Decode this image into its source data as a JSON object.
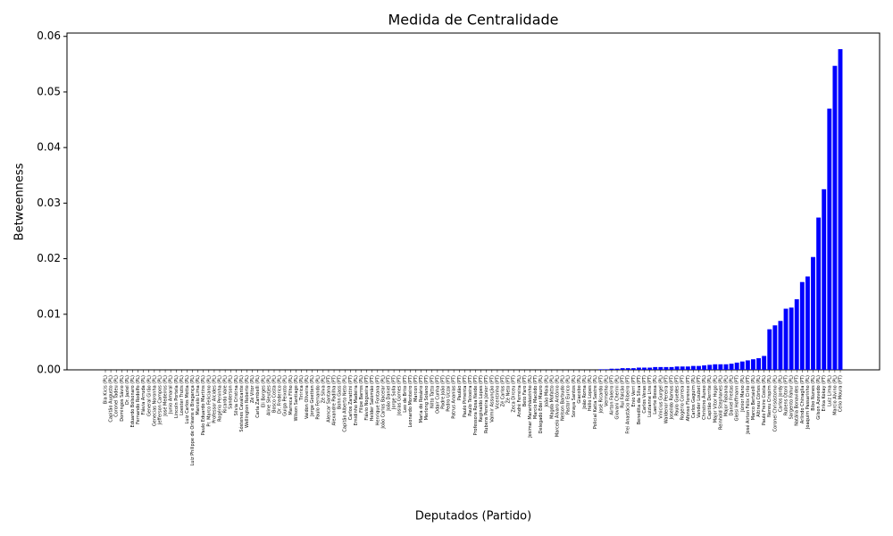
{
  "chart_data": {
    "type": "bar",
    "title": "Medida de Centralidade",
    "xlabel": "Deputados (Partido)",
    "ylabel": "Betweenness",
    "color": "#0000ff",
    "categories": [
      "Bia Kicis (PL)",
      "Capitão Augusto (PL)",
      "Coronel Tadeu (PL)",
      "Domingos Sávio (PL)",
      "Dr. Jaziel (PL)",
      "Eduardo Bolsonaro (PL)",
      "Fernando Rodolfo (PL)",
      "Flávia Arruda (PL)",
      "General Girão (PL)",
      "Genecias Noronha (PL)",
      "Jefferson Campos (PL)",
      "José Medeiros (PL)",
      "Junio Amaral (PL)",
      "Lincoln Portela (PL)",
      "Loester Trutis (PL)",
      "Luiz Carlos Motta (PL)",
      "Luiz Philippe de Orleans e Bragança (PL)",
      "Marcelo Lima (PL)",
      "Paulo Eduardo Martins (PL)",
      "Pr. Marco Feliciano (PL)",
      "Professor Alcides (PL)",
      "Rogério Peninha (PL)",
      "Ricardo Vale (PL)",
      "Sanderson (PL)",
      "Silvia Cristina (PL)",
      "Sóstenes Cavalcante (PL)",
      "Wellington Roberto (PL)",
      "Zé Vitor (PL)",
      "Carla Zambelli (PL)",
      "Eli Borges (PL)",
      "Aline Sleutjes (PL)",
      "Bosco Costa (PL)",
      "Dr. Frederico (PL)",
      "Guiga Peixoto (PL)",
      "Marreca Filho (PL)",
      "Wilson Santiago (PL)",
      "Tiririca (PL)",
      "Vaidon Oliveira (PL)",
      "Jorge Goetten (PL)",
      "Paulo Fernando (PL)",
      "Zé Silva (PL)",
      "Alencar Santana (PT)",
      "Alexandre Padilha (PT)",
      "Bohn Gass (PT)",
      "Capitão Alberto Neto (PL)",
      "Carlos Zarattini (PT)",
      "Emidinho Madeira (PL)",
      "Filipe Barros (PL)",
      "Flávio Nogueira (PT)",
      "Helder Salomão (PT)",
      "Henrique Fontana (PT)",
      "João Carlos Bacelar (PL)",
      "João Daniel (PT)",
      "Jorge Solla (PT)",
      "Josias Gomes (PT)",
      "Leo de Brito (PT)",
      "Leonardo Monteiro (PT)",
      "Marcon (PT)",
      "Maria do Rosário (PT)",
      "Merlong Solano (PT)",
      "Nilto Tatto (PT)",
      "Odair Cunha (PT)",
      "Padre João (PT)",
      "Pedro Uczai (PT)",
      "Patrus Ananias (PT)",
      "Paulão (PT)",
      "Paulo Pimenta (PT)",
      "Paulo Teixeira (PT)",
      "Professora Rosa Neide (PT)",
      "Reginaldo Lopes (PT)",
      "Rubens Pereira Júnior (PT)",
      "Valmir Assunção (PT)",
      "Vicentinho (PT)",
      "Zé Carlos (PT)",
      "Zé Neto (PT)",
      "Zeca Dirceu (PT)",
      "André Ferreira (PL)",
      "Beto Faro (PT)",
      "Josimar Maranhãozinho (PL)",
      "Marcio Macêdo (PT)",
      "Delegado Éder Mauro (PL)",
      "João Maia (PL)",
      "Magda Mofatto (PL)",
      "Marcelo Álvaro Antônio (PL)",
      "Nelson Barbudo (PL)",
      "Pastor Eurico (PL)",
      "Soraya Santos (PL)",
      "Giacobo (PL)",
      "João Roma (PL)",
      "Hélio Lopes (PL)",
      "Policial Katia Sastre (PL)",
      "José Ricardo (PT)",
      "Vermelho (PL)",
      "Airton Faleiro (PT)",
      "Giovani Cherini (PL)",
      "Rui Falcão (PT)",
      "Frei Anastácio Ribeiro (PT)",
      "Enio Verri (PT)",
      "Benedita da Silva (PT)",
      "Carlos Veras (PT)",
      "Luizianne Lins (PT)",
      "Laerte Bessa (PL)",
      "Vinicius Gurgel (PL)",
      "Waldenor Pereira (PT)",
      "Joseildo Ramos (PT)",
      "Paulo Guedes (PT)",
      "Rogério Correia (PT)",
      "Afonso Florence (PT)",
      "Carlos Gaguim (PL)",
      "Vander Loubet (PT)",
      "Christino Áureo (PL)",
      "Capitão Derrite (PL)",
      "Major Vitor Hugo (PL)",
      "Reinhold Stephanes (PL)",
      "Major Fabiana (PL)",
      "Daniel Freitas (PL)",
      "Gleisi Hoffmann (PT)",
      "Júnior Mano (PL)",
      "José Airton Félix Cirilo (PT)",
      "Marco Bertaiolli (PL)",
      "Altineu Côrtes (PL)",
      "Paulo Freire Costa (PL)",
      "Nereu Crispim (PL)",
      "Coronel Chrisóstomo (PL)",
      "Carlos Jordy (PL)",
      "Rubens Otoni (PT)",
      "Sargento Fahur (PL)",
      "Natália Bonavides (PT)",
      "Arlindo Chinaglia (PT)",
      "Joaquim Passarinho (PL)",
      "Bibo Nunes (PL)",
      "Gilson Azevedo (PL)",
      "Erika Kokay (PT)",
      "Luiz Lima (PL)",
      "Marcio Alvino (PL)",
      "Célio Moura (PT)"
    ],
    "values": [
      0,
      0,
      0,
      0,
      0,
      0,
      0,
      0,
      0,
      0,
      0,
      0,
      0,
      0,
      0,
      0,
      0,
      0,
      0,
      0,
      0,
      0,
      0,
      0,
      0,
      0,
      0,
      0,
      0,
      0,
      0,
      0,
      0,
      0,
      0,
      0,
      0,
      0,
      0,
      0,
      0,
      0,
      0,
      0,
      0,
      0,
      0,
      0,
      0,
      0,
      0,
      0,
      0,
      0,
      0,
      0,
      0,
      0,
      0,
      0,
      0,
      0,
      0,
      0,
      0,
      0,
      0,
      0,
      0,
      0,
      0,
      0,
      0,
      0,
      0,
      0,
      0,
      0,
      0,
      0,
      0,
      0,
      0,
      0,
      0,
      0,
      0,
      0,
      0,
      0,
      0,
      0.0001,
      0.0001,
      0.0002,
      0.0002,
      0.0003,
      0.0003,
      0.0003,
      0.0004,
      0.0004,
      0.0004,
      0.0005,
      0.0005,
      0.0005,
      0.0005,
      0.0006,
      0.0006,
      0.0006,
      0.0007,
      0.0007,
      0.0008,
      0.0009,
      0.001,
      0.001,
      0.001,
      0.0011,
      0.0013,
      0.0015,
      0.0017,
      0.0019,
      0.0021,
      0.0025,
      0.0073,
      0.008,
      0.0088,
      0.011,
      0.0112,
      0.0127,
      0.0158,
      0.0168,
      0.0203,
      0.0274,
      0.0325,
      0.047,
      0.0547,
      0.0577
    ],
    "ylim": [
      0,
      0.0606
    ],
    "yticks": [
      {
        "value": 0,
        "label": "0.00"
      },
      {
        "value": 0.01,
        "label": "0.01"
      },
      {
        "value": 0.02,
        "label": "0.02"
      },
      {
        "value": 0.03,
        "label": "0.03"
      },
      {
        "value": 0.04,
        "label": "0.04"
      },
      {
        "value": 0.05,
        "label": "0.05"
      },
      {
        "value": 0.06,
        "label": "0.06"
      }
    ],
    "grid": false
  }
}
